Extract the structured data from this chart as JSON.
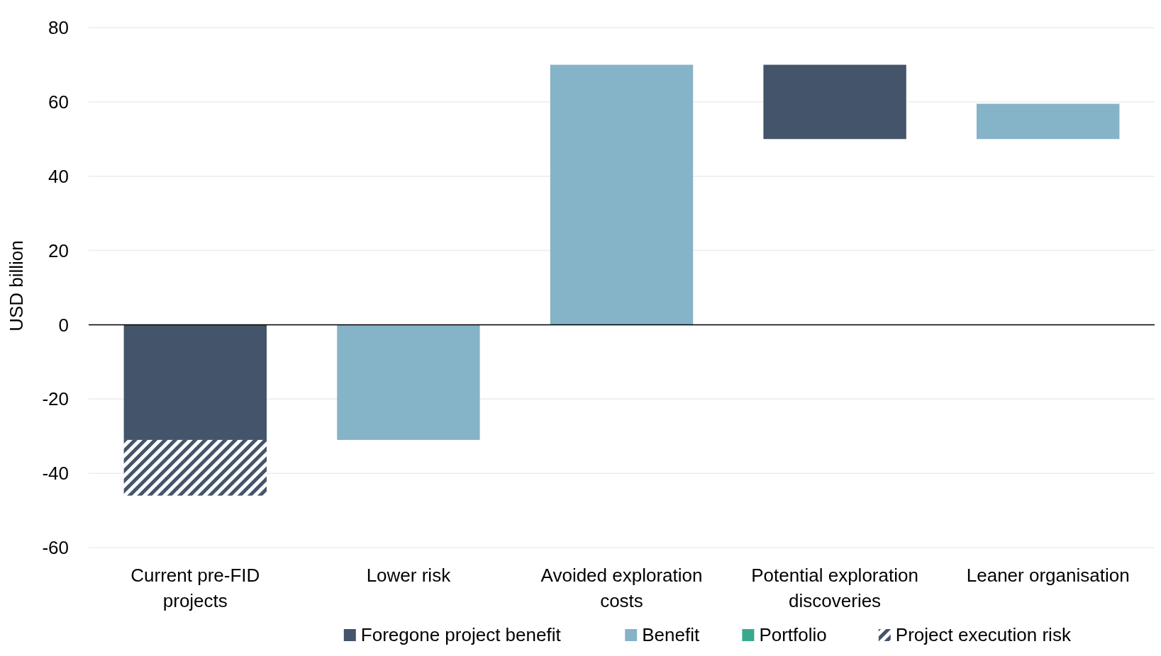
{
  "chart_data": {
    "type": "bar",
    "ylabel": "USD billion",
    "categories": [
      "Current pre-FID projects",
      "Lower risk",
      "Avoided exploration costs",
      "Potential exploration discoveries",
      "Leaner organisation"
    ],
    "stacked": true,
    "series": [
      {
        "name": "Foregone project benefit",
        "color": "#44546a",
        "values": [
          -31,
          null,
          null,
          -20,
          null
        ],
        "base": [
          null,
          null,
          null,
          70,
          null
        ]
      },
      {
        "name": "Benefit",
        "color": "#85b3c8",
        "values": [
          null,
          31,
          70,
          null,
          9.5
        ],
        "base": [
          null,
          -31,
          0,
          null,
          50
        ]
      },
      {
        "name": "Portfolio",
        "color": "#3aa88f",
        "values": [
          null,
          null,
          null,
          null,
          null
        ]
      },
      {
        "name": "Project execution risk",
        "color": "#44546a",
        "values": [
          -15,
          null,
          null,
          null,
          null
        ]
      }
    ],
    "ylim": [
      -60,
      80
    ],
    "yticks": [
      -60,
      -40,
      -20,
      0,
      20,
      40,
      60,
      80
    ],
    "grid": "y",
    "legend": "bottom",
    "ref_lines": [
      {
        "axis": "y",
        "value": 0,
        "color": "#000000"
      }
    ]
  }
}
